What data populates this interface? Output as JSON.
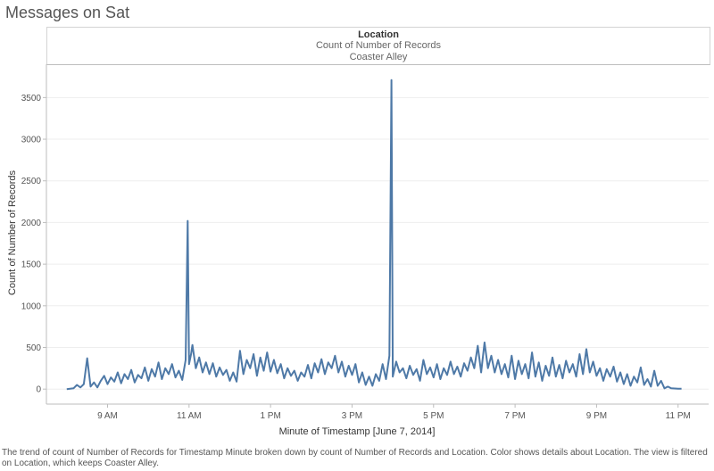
{
  "page": {
    "title": "Messages on Sat",
    "caption": "The trend of count of Number of Records for Timestamp Minute broken down by count of Number of Records and Location.  Color shows details about Location. The view is filtered on Location, which keeps Coaster Alley."
  },
  "header": {
    "title": "Location",
    "measure": "Count of Number of Records",
    "pane": "Coaster Alley"
  },
  "colors": {
    "line": "#4e79a7",
    "grid": "#eeeeee",
    "axis": "#bdbdbd"
  },
  "chart_data": {
    "type": "line",
    "title": "Messages on Sat",
    "xlabel": "Minute of Timestamp [June 7, 2014]",
    "ylabel": "Count of Number of Records",
    "ylim": [
      -180,
      3900
    ],
    "yticks": [
      0,
      500,
      1000,
      1500,
      2000,
      2500,
      3000,
      3500
    ],
    "xlim": [
      "07:30",
      "23:45"
    ],
    "xticks": [
      {
        "time": "09:00",
        "label": "9 AM"
      },
      {
        "time": "11:00",
        "label": "11 AM"
      },
      {
        "time": "13:00",
        "label": "1 PM"
      },
      {
        "time": "15:00",
        "label": "3 PM"
      },
      {
        "time": "17:00",
        "label": "5 PM"
      },
      {
        "time": "19:00",
        "label": "7 PM"
      },
      {
        "time": "21:00",
        "label": "9 PM"
      },
      {
        "time": "23:00",
        "label": "11 PM"
      }
    ],
    "grid": true,
    "legend": "none",
    "series": [
      {
        "points": [
          [
            "08:00",
            0
          ],
          [
            "08:10",
            10
          ],
          [
            "08:15",
            50
          ],
          [
            "08:20",
            20
          ],
          [
            "08:25",
            60
          ],
          [
            "08:30",
            370
          ],
          [
            "08:35",
            30
          ],
          [
            "08:40",
            80
          ],
          [
            "08:45",
            20
          ],
          [
            "08:50",
            100
          ],
          [
            "08:55",
            160
          ],
          [
            "09:00",
            60
          ],
          [
            "09:05",
            140
          ],
          [
            "09:10",
            90
          ],
          [
            "09:15",
            200
          ],
          [
            "09:20",
            70
          ],
          [
            "09:25",
            180
          ],
          [
            "09:30",
            120
          ],
          [
            "09:35",
            230
          ],
          [
            "09:40",
            80
          ],
          [
            "09:45",
            170
          ],
          [
            "09:50",
            130
          ],
          [
            "09:55",
            260
          ],
          [
            "10:00",
            100
          ],
          [
            "10:05",
            240
          ],
          [
            "10:10",
            150
          ],
          [
            "10:15",
            320
          ],
          [
            "10:20",
            120
          ],
          [
            "10:25",
            250
          ],
          [
            "10:30",
            180
          ],
          [
            "10:35",
            300
          ],
          [
            "10:40",
            140
          ],
          [
            "10:45",
            220
          ],
          [
            "10:50",
            110
          ],
          [
            "10:55",
            350
          ],
          [
            "10:58",
            2020
          ],
          [
            "11:00",
            300
          ],
          [
            "11:03",
            420
          ],
          [
            "11:05",
            530
          ],
          [
            "11:10",
            250
          ],
          [
            "11:15",
            380
          ],
          [
            "11:20",
            200
          ],
          [
            "11:25",
            320
          ],
          [
            "11:30",
            180
          ],
          [
            "11:35",
            310
          ],
          [
            "11:40",
            150
          ],
          [
            "11:45",
            260
          ],
          [
            "11:50",
            170
          ],
          [
            "11:55",
            230
          ],
          [
            "12:00",
            100
          ],
          [
            "12:05",
            200
          ],
          [
            "12:10",
            90
          ],
          [
            "12:15",
            460
          ],
          [
            "12:20",
            180
          ],
          [
            "12:25",
            350
          ],
          [
            "12:30",
            250
          ],
          [
            "12:35",
            420
          ],
          [
            "12:40",
            160
          ],
          [
            "12:45",
            380
          ],
          [
            "12:50",
            220
          ],
          [
            "12:55",
            440
          ],
          [
            "13:00",
            210
          ],
          [
            "13:05",
            350
          ],
          [
            "13:10",
            190
          ],
          [
            "13:15",
            300
          ],
          [
            "13:20",
            130
          ],
          [
            "13:25",
            250
          ],
          [
            "13:30",
            160
          ],
          [
            "13:35",
            220
          ],
          [
            "13:40",
            100
          ],
          [
            "13:45",
            200
          ],
          [
            "13:50",
            150
          ],
          [
            "13:55",
            290
          ],
          [
            "14:00",
            130
          ],
          [
            "14:05",
            310
          ],
          [
            "14:10",
            200
          ],
          [
            "14:15",
            360
          ],
          [
            "14:20",
            180
          ],
          [
            "14:25",
            320
          ],
          [
            "14:30",
            250
          ],
          [
            "14:35",
            400
          ],
          [
            "14:40",
            200
          ],
          [
            "14:45",
            330
          ],
          [
            "14:50",
            150
          ],
          [
            "14:55",
            280
          ],
          [
            "15:00",
            170
          ],
          [
            "15:05",
            300
          ],
          [
            "15:10",
            80
          ],
          [
            "15:15",
            200
          ],
          [
            "15:20",
            50
          ],
          [
            "15:25",
            150
          ],
          [
            "15:30",
            40
          ],
          [
            "15:35",
            180
          ],
          [
            "15:40",
            100
          ],
          [
            "15:45",
            300
          ],
          [
            "15:50",
            120
          ],
          [
            "15:55",
            400
          ],
          [
            "15:58",
            3710
          ],
          [
            "16:00",
            150
          ],
          [
            "16:05",
            330
          ],
          [
            "16:10",
            200
          ],
          [
            "16:15",
            250
          ],
          [
            "16:20",
            130
          ],
          [
            "16:25",
            280
          ],
          [
            "16:30",
            170
          ],
          [
            "16:35",
            240
          ],
          [
            "16:40",
            100
          ],
          [
            "16:45",
            350
          ],
          [
            "16:50",
            180
          ],
          [
            "16:55",
            260
          ],
          [
            "17:00",
            140
          ],
          [
            "17:05",
            300
          ],
          [
            "17:10",
            120
          ],
          [
            "17:15",
            250
          ],
          [
            "17:20",
            170
          ],
          [
            "17:25",
            330
          ],
          [
            "17:30",
            180
          ],
          [
            "17:35",
            270
          ],
          [
            "17:40",
            150
          ],
          [
            "17:45",
            310
          ],
          [
            "17:50",
            220
          ],
          [
            "17:55",
            380
          ],
          [
            "18:00",
            250
          ],
          [
            "18:05",
            520
          ],
          [
            "18:10",
            200
          ],
          [
            "18:15",
            560
          ],
          [
            "18:20",
            250
          ],
          [
            "18:25",
            400
          ],
          [
            "18:30",
            200
          ],
          [
            "18:35",
            350
          ],
          [
            "18:40",
            180
          ],
          [
            "18:45",
            300
          ],
          [
            "18:50",
            140
          ],
          [
            "18:55",
            400
          ],
          [
            "19:00",
            120
          ],
          [
            "19:05",
            340
          ],
          [
            "19:10",
            180
          ],
          [
            "19:15",
            300
          ],
          [
            "19:20",
            130
          ],
          [
            "19:25",
            440
          ],
          [
            "19:30",
            150
          ],
          [
            "19:35",
            320
          ],
          [
            "19:40",
            100
          ],
          [
            "19:45",
            280
          ],
          [
            "19:50",
            160
          ],
          [
            "19:55",
            380
          ],
          [
            "20:00",
            150
          ],
          [
            "20:05",
            290
          ],
          [
            "20:10",
            130
          ],
          [
            "20:15",
            340
          ],
          [
            "20:20",
            200
          ],
          [
            "20:25",
            300
          ],
          [
            "20:30",
            150
          ],
          [
            "20:35",
            420
          ],
          [
            "20:40",
            180
          ],
          [
            "20:45",
            480
          ],
          [
            "20:50",
            200
          ],
          [
            "20:55",
            330
          ],
          [
            "21:00",
            160
          ],
          [
            "21:05",
            250
          ],
          [
            "21:10",
            100
          ],
          [
            "21:15",
            240
          ],
          [
            "21:20",
            150
          ],
          [
            "21:25",
            270
          ],
          [
            "21:30",
            90
          ],
          [
            "21:35",
            200
          ],
          [
            "21:40",
            60
          ],
          [
            "21:45",
            180
          ],
          [
            "21:50",
            40
          ],
          [
            "21:55",
            150
          ],
          [
            "22:00",
            80
          ],
          [
            "22:05",
            260
          ],
          [
            "22:10",
            50
          ],
          [
            "22:15",
            120
          ],
          [
            "22:20",
            30
          ],
          [
            "22:25",
            220
          ],
          [
            "22:30",
            40
          ],
          [
            "22:35",
            100
          ],
          [
            "22:40",
            10
          ],
          [
            "22:45",
            30
          ],
          [
            "22:50",
            10
          ],
          [
            "23:00",
            5
          ],
          [
            "23:05",
            5
          ]
        ]
      }
    ]
  }
}
